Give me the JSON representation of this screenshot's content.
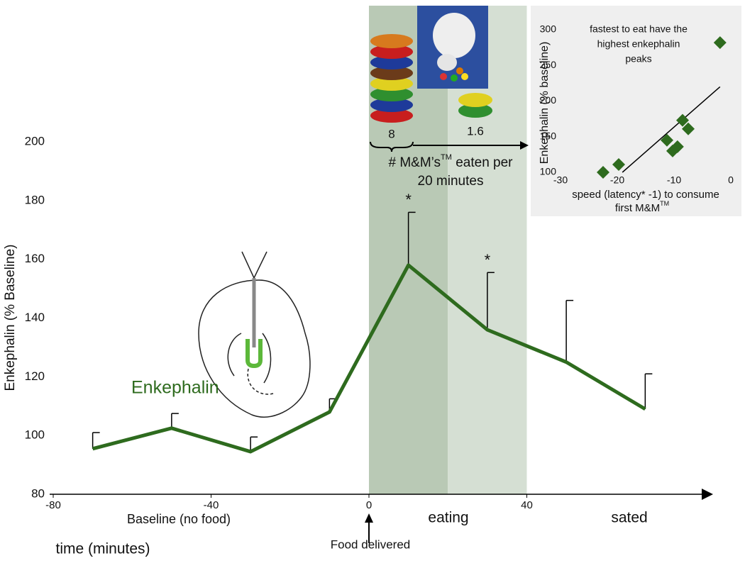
{
  "chart_data": [
    {
      "type": "line",
      "y_label": "Enkephalin (% Baseline)",
      "x_label": "time (minutes)",
      "x": [
        -70,
        -50,
        -30,
        -10,
        10,
        30,
        50,
        70
      ],
      "series": [
        {
          "name": "Enkephalin",
          "color": "#2e6b1e",
          "values": [
            95.5,
            102.5,
            94.5,
            108,
            158,
            136,
            125,
            109
          ],
          "errors": [
            5.5,
            5,
            5,
            4.5,
            18,
            19.5,
            21,
            12
          ]
        }
      ],
      "annotations": [
        {
          "text": "*",
          "x": 10
        },
        {
          "text": "*",
          "x": 30
        }
      ],
      "shaded": [
        {
          "from": 0,
          "to": 20,
          "color": "#b9c9b5"
        },
        {
          "from": 20,
          "to": 40,
          "color": "#d5dfd3"
        }
      ],
      "xlim": [
        -80,
        84.5
      ],
      "xticks": [
        -80,
        -40,
        0,
        40
      ],
      "ylim": [
        80,
        200
      ],
      "yticks": [
        80,
        100,
        120,
        140,
        160,
        180,
        200
      ]
    },
    {
      "type": "scatter",
      "title": [
        "fastest to eat have the",
        "highest enkephalin",
        "peaks"
      ],
      "y_label": "Enkephalin  (% baseline)",
      "x_label": [
        "speed (latency* -1) to consume",
        "first M&M",
        "TM"
      ],
      "x": [
        -22.5,
        -19.75,
        -11.25,
        -10.25,
        -9.4,
        -8.5,
        -7.5,
        -1.9
      ],
      "values": [
        100,
        111,
        145,
        130,
        136,
        173,
        161,
        282
      ],
      "color": "#2e6b1e",
      "trendline": {
        "x": [
          -19.1,
          -1.9
        ],
        "y": [
          100,
          220
        ]
      },
      "xlim": [
        -30,
        0
      ],
      "xticks": [
        -30,
        -20,
        -10,
        0
      ],
      "ylim": [
        100,
        300
      ],
      "yticks": [
        100,
        150,
        200,
        250,
        300
      ]
    }
  ],
  "food_panel": {
    "counts": [
      8,
      1.6
    ],
    "label": [
      "# M&M’s",
      "TM",
      " eaten per",
      "20 minutes"
    ]
  },
  "phases": [
    "Baseline (no food)",
    "eating",
    "sated"
  ],
  "event": "Food delivered"
}
